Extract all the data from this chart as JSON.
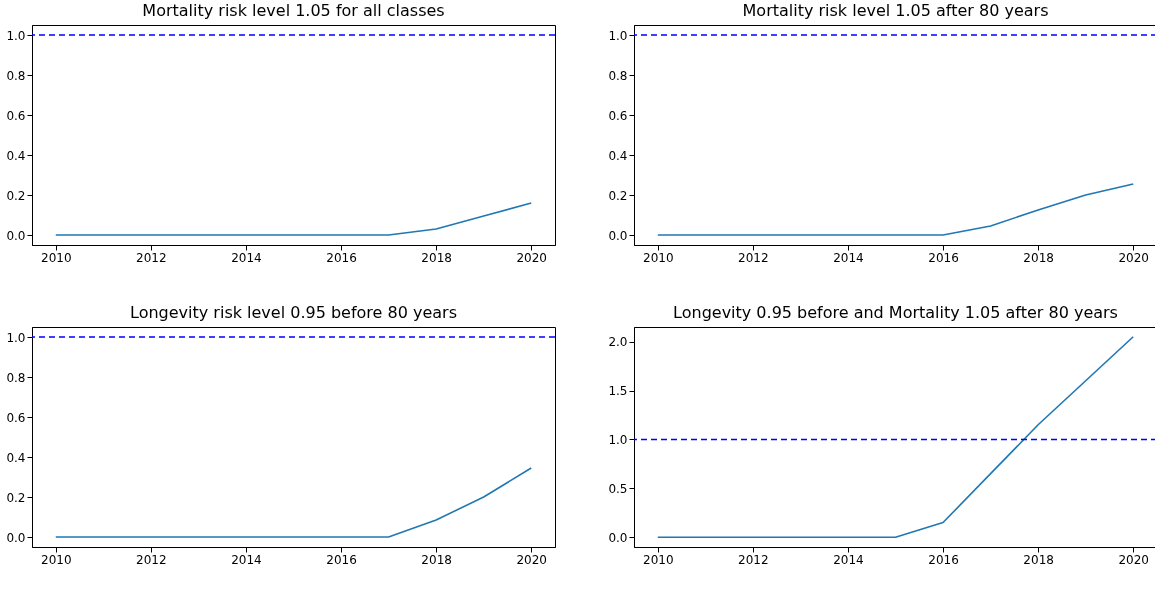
{
  "chart_data": [
    {
      "type": "line",
      "title": "Mortality risk level 1.05 for all classes",
      "x": [
        2010,
        2011,
        2012,
        2013,
        2014,
        2015,
        2016,
        2017,
        2018,
        2019,
        2020
      ],
      "series": [
        {
          "color": "#1f77b4",
          "values": [
            0,
            0,
            0,
            0,
            0,
            0,
            0,
            0,
            0.03,
            0.095,
            0.16
          ]
        }
      ],
      "xlim": [
        2009.5,
        2020.5
      ],
      "xticks": [
        2010,
        2012,
        2014,
        2016,
        2018,
        2020
      ],
      "ylim": [
        -0.05,
        1.05
      ],
      "yticks": [
        {
          "value": 0,
          "label": "0.0"
        },
        0.2,
        0.4,
        0.6,
        0.8,
        {
          "value": 1,
          "label": "1.0"
        }
      ],
      "ref_lines": [
        {
          "axis": "y",
          "value": 1.0,
          "color": "#0000ff",
          "line_style": "dashed"
        }
      ],
      "grid": false
    },
    {
      "type": "line",
      "title": "Mortality risk level 1.05 after 80 years",
      "x": [
        2010,
        2011,
        2012,
        2013,
        2014,
        2015,
        2016,
        2017,
        2018,
        2019,
        2020
      ],
      "series": [
        {
          "color": "#1f77b4",
          "values": [
            0,
            0,
            0,
            0,
            0,
            0,
            0,
            0.045,
            0.125,
            0.2,
            0.255
          ]
        }
      ],
      "xlim": [
        2009.5,
        2020.5
      ],
      "xticks": [
        2010,
        2012,
        2014,
        2016,
        2018,
        2020
      ],
      "ylim": [
        -0.05,
        1.05
      ],
      "yticks": [
        {
          "value": 0,
          "label": "0.0"
        },
        0.2,
        0.4,
        0.6,
        0.8,
        {
          "value": 1,
          "label": "1.0"
        }
      ],
      "ref_lines": [
        {
          "axis": "y",
          "value": 1.0,
          "color": "#0000ff",
          "line_style": "dashed"
        }
      ],
      "grid": false
    },
    {
      "type": "line",
      "title": "Longevity risk level 0.95 before 80 years",
      "x": [
        2010,
        2011,
        2012,
        2013,
        2014,
        2015,
        2016,
        2017,
        2018,
        2019,
        2020
      ],
      "series": [
        {
          "color": "#1f77b4",
          "values": [
            0,
            0,
            0,
            0,
            0,
            0,
            0,
            0,
            0.085,
            0.2,
            0.345
          ]
        }
      ],
      "xlim": [
        2009.5,
        2020.5
      ],
      "xticks": [
        2010,
        2012,
        2014,
        2016,
        2018,
        2020
      ],
      "ylim": [
        -0.05,
        1.05
      ],
      "yticks": [
        {
          "value": 0,
          "label": "0.0"
        },
        0.2,
        0.4,
        0.6,
        0.8,
        {
          "value": 1,
          "label": "1.0"
        }
      ],
      "ref_lines": [
        {
          "axis": "y",
          "value": 1.0,
          "color": "#0000ff",
          "line_style": "dashed"
        }
      ],
      "grid": false
    },
    {
      "type": "line",
      "title": "Longevity 0.95 before and Mortality 1.05 after 80 years",
      "x": [
        2010,
        2011,
        2012,
        2013,
        2014,
        2015,
        2016,
        2017,
        2018,
        2019,
        2020
      ],
      "series": [
        {
          "color": "#1f77b4",
          "values": [
            0,
            0,
            0,
            0,
            0,
            0,
            0.15,
            0.65,
            1.15,
            1.6,
            2.05
          ]
        }
      ],
      "xlim": [
        2009.5,
        2020.5
      ],
      "xticks": [
        2010,
        2012,
        2014,
        2016,
        2018,
        2020
      ],
      "ylim": [
        -0.1,
        2.15
      ],
      "yticks": [
        {
          "value": 0,
          "label": "0.0"
        },
        0.5,
        {
          "value": 1,
          "label": "1.0"
        },
        1.5,
        {
          "value": 2,
          "label": "2.0"
        }
      ],
      "ref_lines": [
        {
          "axis": "y",
          "value": 1.0,
          "color": "#0000ff",
          "line_style": "dashed"
        }
      ],
      "grid": false
    }
  ]
}
